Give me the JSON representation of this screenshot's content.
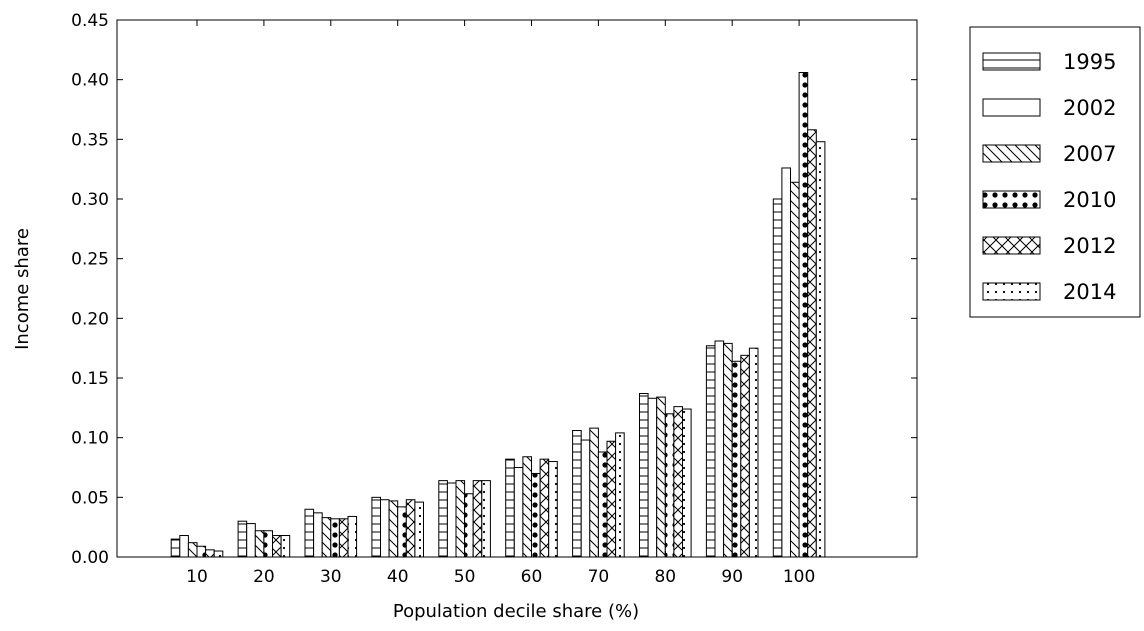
{
  "chart_data": {
    "type": "bar",
    "title": "",
    "xlabel": "Population decile share (%)",
    "ylabel": "Income share",
    "categories": [
      "10",
      "20",
      "30",
      "40",
      "50",
      "60",
      "70",
      "80",
      "90",
      "100"
    ],
    "ylim": [
      0,
      0.45
    ],
    "yticks": [
      "0.00",
      "0.05",
      "0.10",
      "0.15",
      "0.20",
      "0.25",
      "0.30",
      "0.35",
      "0.40",
      "0.45"
    ],
    "grid": false,
    "legend_position": "outside-top-right",
    "bar_fill": "#ffffff",
    "bar_stroke": "#000000",
    "series": [
      {
        "name": "1995",
        "hatch": "horizontal-lines",
        "values": [
          0.015,
          0.03,
          0.04,
          0.05,
          0.064,
          0.082,
          0.106,
          0.137,
          0.177,
          0.3
        ]
      },
      {
        "name": "2002",
        "hatch": "none",
        "values": [
          0.018,
          0.028,
          0.037,
          0.048,
          0.062,
          0.075,
          0.098,
          0.133,
          0.181,
          0.326
        ]
      },
      {
        "name": "2007",
        "hatch": "diagonal-lines",
        "values": [
          0.012,
          0.022,
          0.033,
          0.047,
          0.064,
          0.084,
          0.108,
          0.134,
          0.179,
          0.314
        ]
      },
      {
        "name": "2010",
        "hatch": "dots",
        "values": [
          0.009,
          0.022,
          0.032,
          0.042,
          0.053,
          0.07,
          0.088,
          0.12,
          0.164,
          0.406
        ]
      },
      {
        "name": "2012",
        "hatch": "cross-diagonal",
        "values": [
          0.006,
          0.018,
          0.032,
          0.048,
          0.064,
          0.082,
          0.097,
          0.126,
          0.169,
          0.358
        ]
      },
      {
        "name": "2014",
        "hatch": "small-dots",
        "values": [
          0.005,
          0.018,
          0.034,
          0.046,
          0.064,
          0.08,
          0.104,
          0.124,
          0.175,
          0.348
        ]
      }
    ]
  }
}
